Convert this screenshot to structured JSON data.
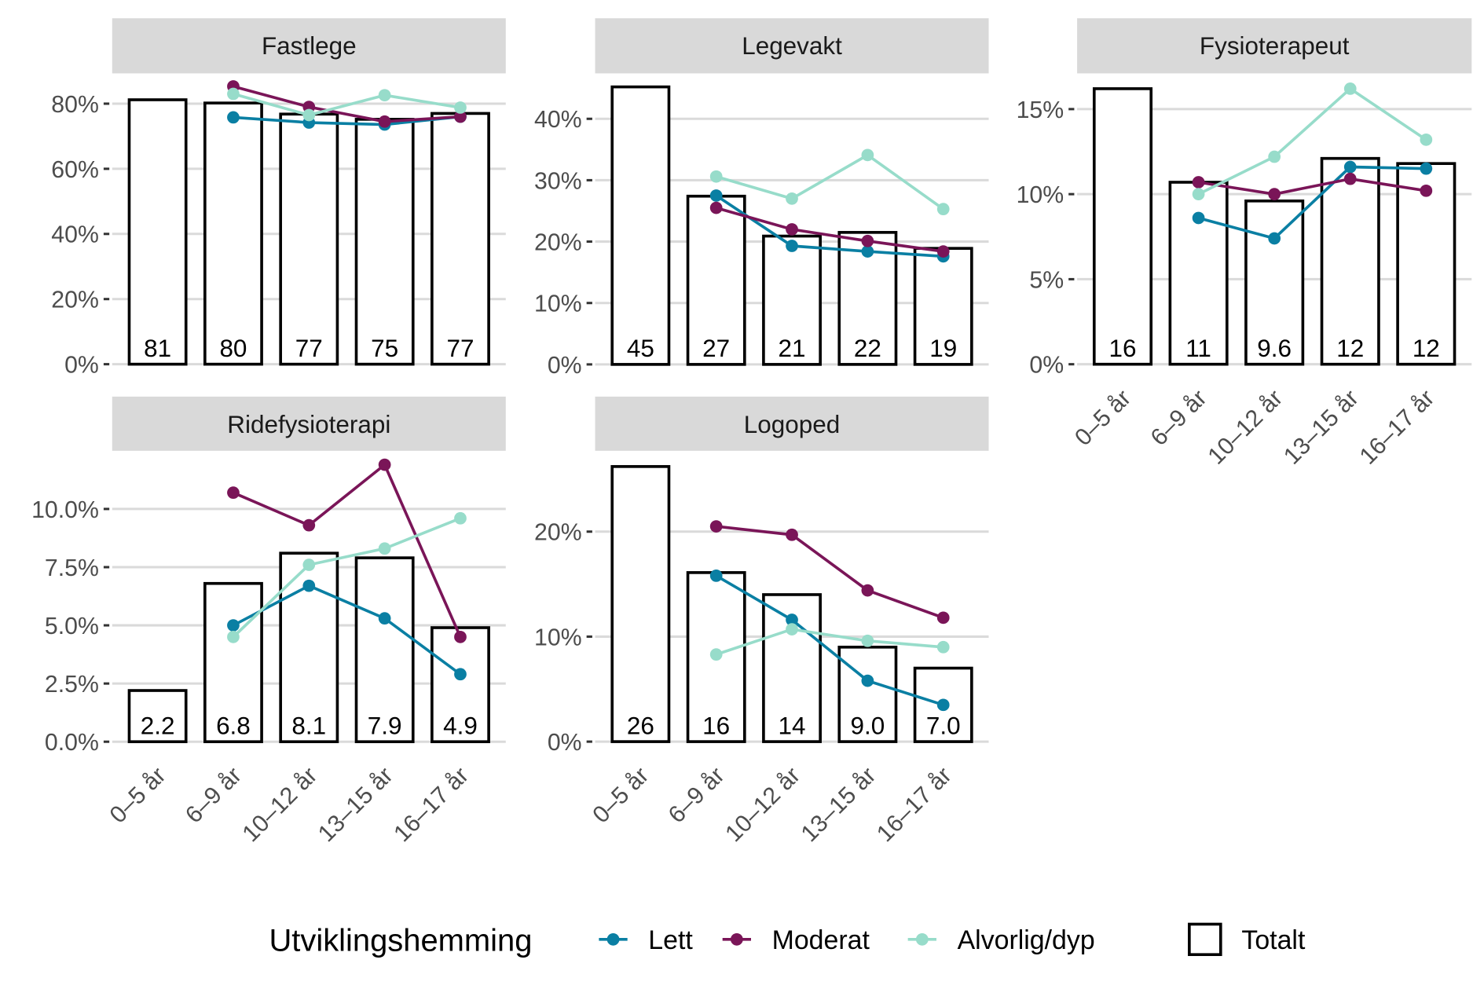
{
  "chart_data": {
    "type": "bar",
    "layout": "facet grid, 3 columns, free y scales",
    "grid": "horizontal major gridlines",
    "categories": [
      "0–5 år",
      "6–9 år",
      "10–12 år",
      "13–15 år",
      "16–17 år"
    ],
    "colors": {
      "Lett": "#0a7fa3",
      "Moderat": "#7a1558",
      "Alvorlig/dyp": "#97dcca",
      "Totalt": "#ffffff",
      "bar_outline": "#000000",
      "strip": "#d9d9d9",
      "grid": "#dadada"
    },
    "legend": {
      "position": "bottom",
      "title": "Utviklingshemming",
      "entries": [
        "Lett",
        "Moderat",
        "Alvorlig/dyp"
      ],
      "bar_entry": "Totalt"
    },
    "panels": [
      {
        "title": "Fastlege",
        "ylim": [
          -4.4,
          89.3
        ],
        "yticks": [
          0,
          20,
          40,
          60,
          80
        ],
        "ytick_labels": [
          "0%",
          "20%",
          "40%",
          "60%",
          "80%"
        ],
        "totalt": [
          81.2,
          80.2,
          76.8,
          75.2,
          77.0
        ],
        "totalt_labels": [
          "81",
          "80",
          "77",
          "75",
          "77"
        ],
        "series": [
          {
            "name": "Lett",
            "values": [
              null,
              75.8,
              74.2,
              73.6,
              76.0
            ]
          },
          {
            "name": "Moderat",
            "values": [
              null,
              85.3,
              79.0,
              74.5,
              76.0
            ]
          },
          {
            "name": "Alvorlig/dyp",
            "values": [
              null,
              83.0,
              76.5,
              82.6,
              78.8
            ]
          }
        ]
      },
      {
        "title": "Legevakt",
        "ylim": [
          -2.3,
          47.4
        ],
        "yticks": [
          0,
          10,
          20,
          30,
          40
        ],
        "ytick_labels": [
          "0%",
          "10%",
          "20%",
          "30%",
          "40%"
        ],
        "totalt": [
          45.2,
          27.4,
          20.9,
          21.5,
          18.9
        ],
        "totalt_labels": [
          "45",
          "27",
          "21",
          "22",
          "19"
        ],
        "series": [
          {
            "name": "Lett",
            "values": [
              null,
              27.5,
              19.3,
              18.4,
              17.6
            ]
          },
          {
            "name": "Moderat",
            "values": [
              null,
              25.5,
              22.0,
              20.1,
              18.4
            ]
          },
          {
            "name": "Alvorlig/dyp",
            "values": [
              null,
              30.6,
              27.0,
              34.1,
              25.3
            ]
          }
        ]
      },
      {
        "title": "Fysioterapeut",
        "ylim": [
          -0.84,
          17.1
        ],
        "yticks": [
          0,
          5,
          10,
          15
        ],
        "ytick_labels": [
          "0%",
          "5%",
          "10%",
          "15%"
        ],
        "show_x_labels": true,
        "totalt": [
          16.2,
          10.7,
          9.6,
          12.1,
          11.8
        ],
        "totalt_labels": [
          "16",
          "11",
          "9.6",
          "12",
          "12"
        ],
        "series": [
          {
            "name": "Lett",
            "values": [
              null,
              8.6,
              7.4,
              11.6,
              11.5
            ]
          },
          {
            "name": "Moderat",
            "values": [
              null,
              10.7,
              10.0,
              10.9,
              10.2
            ]
          },
          {
            "name": "Alvorlig/dyp",
            "values": [
              null,
              10.0,
              12.2,
              16.2,
              13.2
            ]
          }
        ]
      },
      {
        "title": "Ridefysioterapi",
        "ylim": [
          -0.61,
          12.5
        ],
        "yticks": [
          0,
          2.5,
          5,
          7.5,
          10
        ],
        "ytick_labels": [
          "0.0%",
          "2.5%",
          "5.0%",
          "7.5%",
          "10.0%"
        ],
        "show_x_labels": true,
        "totalt": [
          2.2,
          6.8,
          8.1,
          7.9,
          4.9
        ],
        "totalt_labels": [
          "2.2",
          "6.8",
          "8.1",
          "7.9",
          "4.9"
        ],
        "series": [
          {
            "name": "Lett",
            "values": [
              null,
              5.0,
              6.7,
              5.3,
              2.9
            ]
          },
          {
            "name": "Moderat",
            "values": [
              null,
              10.7,
              9.3,
              11.9,
              4.5
            ]
          },
          {
            "name": "Alvorlig/dyp",
            "values": [
              null,
              4.5,
              7.6,
              8.3,
              9.6
            ]
          }
        ]
      },
      {
        "title": "Logoped",
        "ylim": [
          -1.36,
          27.7
        ],
        "yticks": [
          0,
          10,
          20
        ],
        "ytick_labels": [
          "0%",
          "10%",
          "20%"
        ],
        "show_x_labels": true,
        "totalt": [
          26.2,
          16.1,
          14.0,
          9.0,
          7.0
        ],
        "totalt_labels": [
          "26",
          "16",
          "14",
          "9.0",
          "7.0"
        ],
        "series": [
          {
            "name": "Lett",
            "values": [
              null,
              15.8,
              11.6,
              5.8,
              3.5
            ]
          },
          {
            "name": "Moderat",
            "values": [
              null,
              20.5,
              19.7,
              14.4,
              11.8
            ]
          },
          {
            "name": "Alvorlig/dyp",
            "values": [
              null,
              8.3,
              10.7,
              9.6,
              9.0
            ]
          }
        ]
      }
    ]
  }
}
